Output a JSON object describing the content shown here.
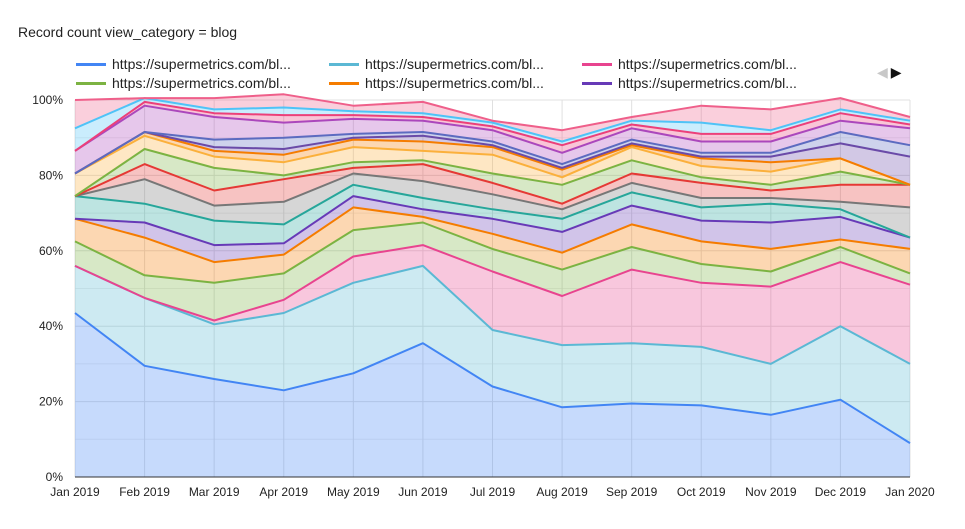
{
  "chart_data": {
    "type": "area",
    "stacked": true,
    "normalized": true,
    "title": "Record count view_category = blog",
    "xlabel": "",
    "ylabel": "",
    "ylim": [
      0,
      100
    ],
    "y_tick_labels": [
      "0%",
      "20%",
      "40%",
      "60%",
      "80%",
      "100%"
    ],
    "x": [
      "Jan 2019",
      "Feb 2019",
      "Mar 2019",
      "Apr 2019",
      "May 2019",
      "Jun 2019",
      "Jul 2019",
      "Aug 2019",
      "Sep 2019",
      "Oct 2019",
      "Nov 2019",
      "Dec 2019",
      "Jan 2020"
    ],
    "grid": true,
    "legend_position": "top",
    "legend": [
      "https://supermetrics.com/bl...",
      "https://supermetrics.com/bl...",
      "https://supermetrics.com/bl...",
      "https://supermetrics.com/bl...",
      "https://supermetrics.com/bl...",
      "https://supermetrics.com/bl..."
    ],
    "pager": {
      "prev": "◀",
      "next": "▶"
    },
    "series": [
      {
        "color": "#4285f4",
        "values": [
          43.5,
          29.5,
          26,
          23,
          27.5,
          35.5,
          24,
          18.5,
          19.5,
          19,
          16.5,
          20.5,
          9
        ]
      },
      {
        "color": "#5bb8d4",
        "values": [
          12.5,
          18,
          14.5,
          20.5,
          24,
          20.5,
          15,
          16.5,
          16,
          15.5,
          13.5,
          19.5,
          21
        ]
      },
      {
        "color": "#e8448f",
        "values": [
          0,
          0,
          1,
          3.5,
          7,
          5.5,
          15.5,
          13,
          19.5,
          17,
          20.5,
          17,
          21
        ]
      },
      {
        "color": "#7cb342",
        "values": [
          6.5,
          6,
          10,
          7,
          7,
          6,
          6,
          7,
          6,
          5,
          4,
          4,
          3
        ]
      },
      {
        "color": "#f57c00",
        "values": [
          6,
          10,
          5.5,
          5,
          6,
          1.5,
          4,
          4.5,
          6,
          6,
          6,
          2,
          6.5
        ]
      },
      {
        "color": "#673ab7",
        "values": [
          0,
          4,
          4.5,
          3,
          3,
          2,
          4,
          5.5,
          5,
          5.5,
          7,
          6,
          3
        ]
      },
      {
        "color": "#26a69a",
        "values": [
          6,
          5,
          6.5,
          5,
          3,
          3,
          2.5,
          3.5,
          3.5,
          3.5,
          5,
          2,
          0
        ]
      },
      {
        "color": "#777777",
        "values": [
          0,
          6.5,
          4,
          6,
          3,
          4.5,
          4,
          2.5,
          2.5,
          2.5,
          1.5,
          2,
          8
        ]
      },
      {
        "color": "#e53935",
        "values": [
          0,
          4,
          4,
          6,
          1.5,
          4.5,
          3,
          1.5,
          2.5,
          4,
          2,
          4.5,
          6
        ]
      },
      {
        "color": "#7cb342",
        "values": [
          0,
          4,
          6,
          1,
          1.5,
          1,
          2.5,
          5,
          3.5,
          1.5,
          1.5,
          3.5,
          0
        ]
      },
      {
        "color": "#fbb03b",
        "values": [
          6,
          3.5,
          3,
          3.5,
          4,
          2.5,
          5,
          2,
          3.5,
          3,
          3.5,
          3.5,
          0
        ]
      },
      {
        "color": "#f57c00",
        "values": [
          0,
          1,
          1.5,
          2,
          2,
          2.5,
          2,
          2,
          0.5,
          2,
          2.5,
          0,
          0
        ]
      },
      {
        "color": "#6a4aa8",
        "values": [
          0,
          0,
          1,
          1.5,
          0.5,
          1.5,
          0.5,
          0.5,
          0.5,
          0.5,
          1.5,
          4,
          7.5
        ]
      },
      {
        "color": "#5c6bc0",
        "values": [
          0,
          0,
          2,
          3,
          1,
          1,
          1,
          1,
          1,
          1,
          1,
          3,
          3
        ]
      },
      {
        "color": "#ab47bc",
        "values": [
          6,
          7,
          6,
          4,
          4,
          3,
          3,
          3,
          3,
          3,
          3,
          3,
          4.5
        ]
      },
      {
        "color": "#ec407a",
        "values": [
          0,
          1,
          1,
          2,
          1,
          1,
          1,
          2,
          1,
          2,
          2,
          2,
          1
        ]
      },
      {
        "color": "#4fc3f7",
        "values": [
          6,
          1,
          1,
          2,
          1,
          1,
          1,
          1,
          1,
          3,
          1,
          1,
          1
        ]
      },
      {
        "color": "#ef5f8a",
        "values": [
          7.5,
          0,
          3,
          3.5,
          1.5,
          3,
          0.5,
          3,
          1,
          4.5,
          5.5,
          3,
          1
        ]
      }
    ]
  }
}
